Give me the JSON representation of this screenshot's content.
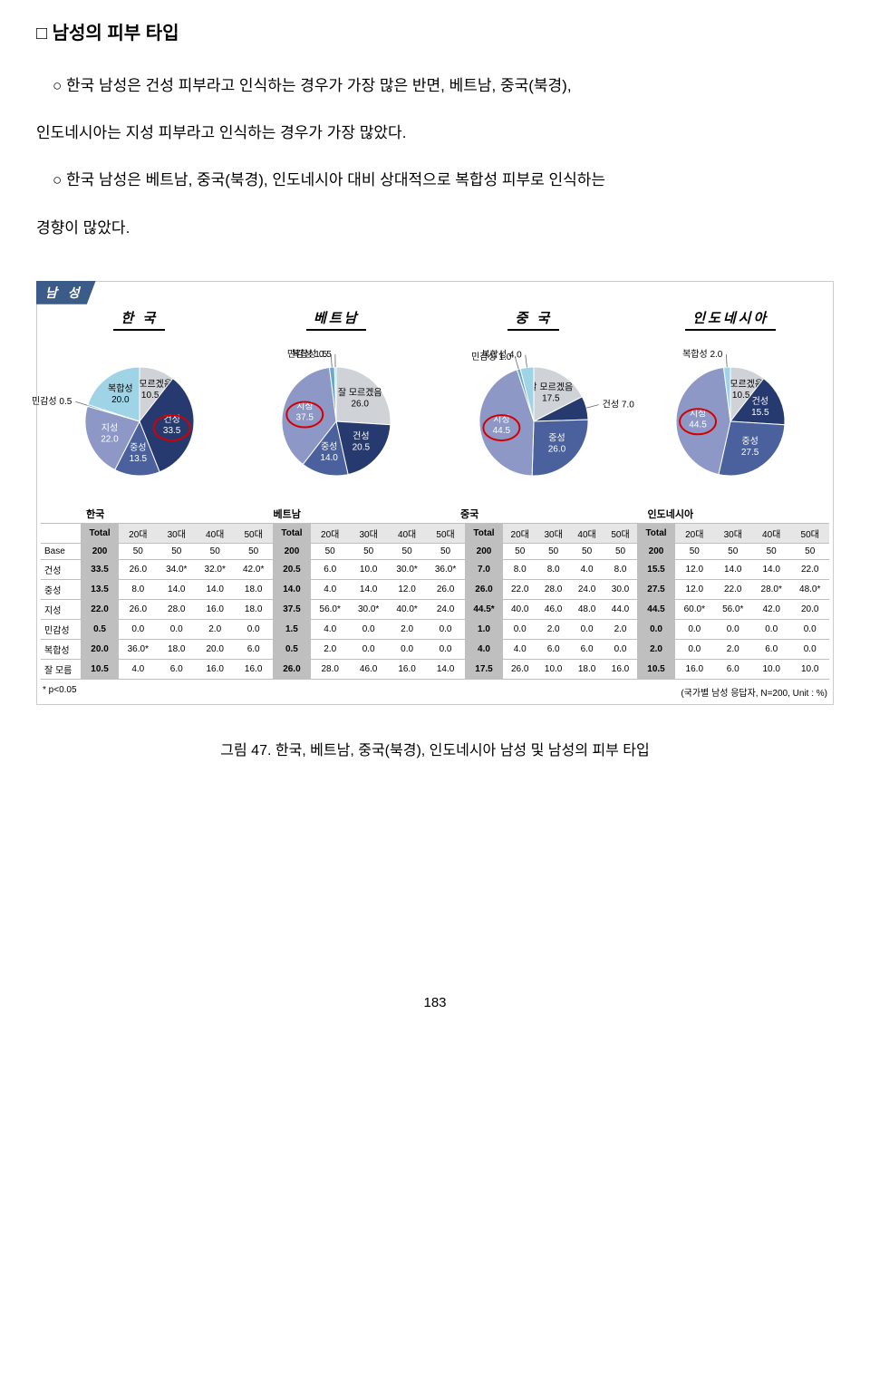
{
  "heading": "□  남성의 피부 타입",
  "p1a": "한국 남성은 건성 피부라고 인식하는 경우가 가장 많은 반면, 베트남, 중국(북경),",
  "p1b": "인도네시아는 지성 피부라고 인식하는 경우가 가장 많았다.",
  "p2a": "한국 남성은 베트남, 중국(북경), 인도네시아 대비 상대적으로 복합성 피부로 인식하는",
  "p2b": "경향이 많았다.",
  "fig_tab": "남 성",
  "colors": {
    "dry": "#273a6f",
    "neutral": "#4a619e",
    "oily": "#8d98c7",
    "sensitive": "#6aa9c9",
    "combo": "#9fd4e6",
    "unknown": "#cfd3d8"
  },
  "pies": [
    {
      "title": "한 국",
      "slices": [
        {
          "key": "unknown",
          "label": "잘 모르겠음",
          "value": 10.5
        },
        {
          "key": "dry",
          "label": "건성",
          "value": 33.5,
          "highlight": true
        },
        {
          "key": "neutral",
          "label": "중성",
          "value": 13.5
        },
        {
          "key": "oily",
          "label": "지성",
          "value": 22.0
        },
        {
          "key": "sensitive",
          "label": "민감성",
          "value": 0.5
        },
        {
          "key": "combo",
          "label": "복합성",
          "value": 20.0
        }
      ]
    },
    {
      "title": "베트남",
      "slices": [
        {
          "key": "unknown",
          "label": "잘 모르겠음",
          "value": 26.0
        },
        {
          "key": "dry",
          "label": "건성",
          "value": 20.5
        },
        {
          "key": "neutral",
          "label": "중성",
          "value": 14.0
        },
        {
          "key": "oily",
          "label": "지성",
          "value": 37.5,
          "highlight": true
        },
        {
          "key": "sensitive",
          "label": "민감성",
          "value": 1.5
        },
        {
          "key": "combo",
          "label": "복합성",
          "value": 0.5
        }
      ]
    },
    {
      "title": "중 국",
      "slices": [
        {
          "key": "unknown",
          "label": "잘 모르겠음",
          "value": 17.5
        },
        {
          "key": "dry",
          "label": "건성",
          "value": 7.0
        },
        {
          "key": "neutral",
          "label": "중성",
          "value": 26.0
        },
        {
          "key": "oily",
          "label": "지성",
          "value": 44.5,
          "highlight": true
        },
        {
          "key": "sensitive",
          "label": "민감성",
          "value": 1.0
        },
        {
          "key": "combo",
          "label": "복합성",
          "value": 4.0
        }
      ]
    },
    {
      "title": "인도네시아",
      "slices": [
        {
          "key": "unknown",
          "label": "잘 모르겠음",
          "value": 10.5
        },
        {
          "key": "dry",
          "label": "건성",
          "value": 15.5
        },
        {
          "key": "neutral",
          "label": "중성",
          "value": 27.5
        },
        {
          "key": "oily",
          "label": "지성",
          "value": 44.5,
          "highlight": true
        },
        {
          "key": "combo",
          "label": "복합성",
          "value": 2.0
        }
      ]
    }
  ],
  "table": {
    "country_headers": [
      "한국",
      "베트남",
      "중국",
      "인도네시아"
    ],
    "col_labels": [
      "Total",
      "20대",
      "30대",
      "40대",
      "50대"
    ],
    "row_labels": [
      "Base",
      "건성",
      "중성",
      "지성",
      "민감성",
      "복합성",
      "잘 모름"
    ],
    "data": [
      [
        "200",
        "50",
        "50",
        "50",
        "50",
        "200",
        "50",
        "50",
        "50",
        "50",
        "200",
        "50",
        "50",
        "50",
        "50",
        "200",
        "50",
        "50",
        "50",
        "50"
      ],
      [
        "33.5",
        "26.0",
        "34.0*",
        "32.0*",
        "42.0*",
        "20.5",
        "6.0",
        "10.0",
        "30.0*",
        "36.0*",
        "7.0",
        "8.0",
        "8.0",
        "4.0",
        "8.0",
        "15.5",
        "12.0",
        "14.0",
        "14.0",
        "22.0"
      ],
      [
        "13.5",
        "8.0",
        "14.0",
        "14.0",
        "18.0",
        "14.0",
        "4.0",
        "14.0",
        "12.0",
        "26.0",
        "26.0",
        "22.0",
        "28.0",
        "24.0",
        "30.0",
        "27.5",
        "12.0",
        "22.0",
        "28.0*",
        "48.0*"
      ],
      [
        "22.0",
        "26.0",
        "28.0",
        "16.0",
        "18.0",
        "37.5",
        "56.0*",
        "30.0*",
        "40.0*",
        "24.0",
        "44.5*",
        "40.0",
        "46.0",
        "48.0",
        "44.0",
        "44.5",
        "60.0*",
        "56.0*",
        "42.0",
        "20.0"
      ],
      [
        "0.5",
        "0.0",
        "0.0",
        "2.0",
        "0.0",
        "1.5",
        "4.0",
        "0.0",
        "2.0",
        "0.0",
        "1.0",
        "0.0",
        "2.0",
        "0.0",
        "2.0",
        "0.0",
        "0.0",
        "0.0",
        "0.0",
        "0.0"
      ],
      [
        "20.0",
        "36.0*",
        "18.0",
        "20.0",
        "6.0",
        "0.5",
        "2.0",
        "0.0",
        "0.0",
        "0.0",
        "4.0",
        "4.0",
        "6.0",
        "6.0",
        "0.0",
        "2.0",
        "0.0",
        "2.0",
        "6.0",
        "0.0"
      ],
      [
        "10.5",
        "4.0",
        "6.0",
        "16.0",
        "16.0",
        "26.0",
        "28.0",
        "46.0",
        "16.0",
        "14.0",
        "17.5",
        "26.0",
        "10.0",
        "18.0",
        "16.0",
        "10.5",
        "16.0",
        "6.0",
        "10.0",
        "10.0"
      ]
    ]
  },
  "foot_left": "* p<0.05",
  "foot_right": "(국가별 남성 응답자, N=200, Unit : %)",
  "caption": "그림 47. 한국, 베트남, 중국(북경), 인도네시아 남성 및 남성의 피부 타입",
  "page_num": "183"
}
